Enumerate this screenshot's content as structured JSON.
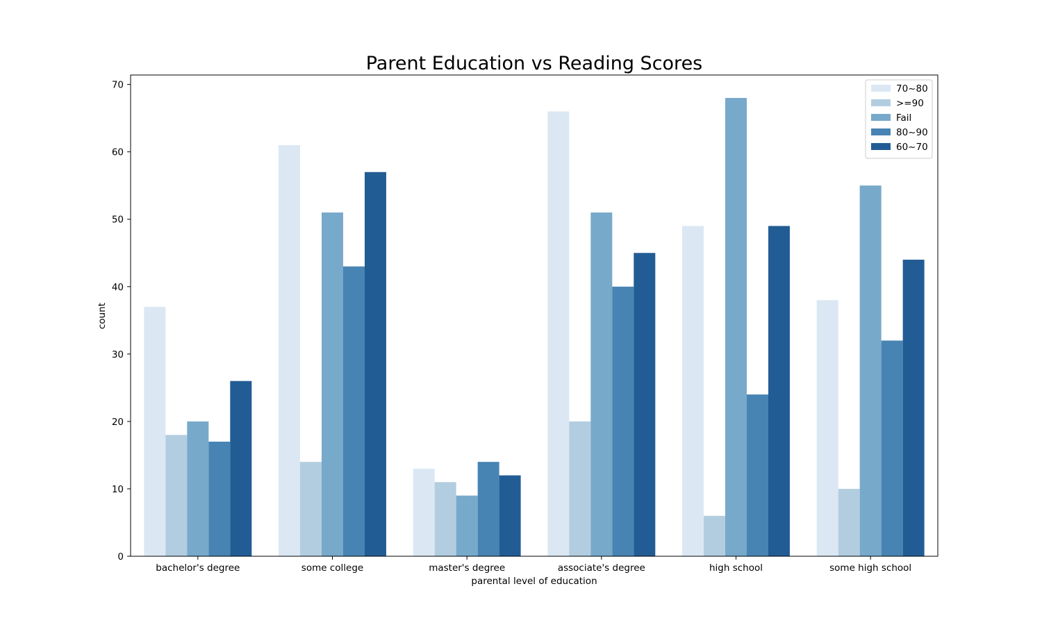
{
  "chart_data": {
    "type": "bar",
    "title": "Parent Education vs Reading Scores",
    "xlabel": "parental level of education",
    "ylabel": "count",
    "ylim": [
      0,
      71.4
    ],
    "yticks": [
      0,
      10,
      20,
      30,
      40,
      50,
      60,
      70
    ],
    "grid": false,
    "legend_position": "top-right",
    "categories": [
      "bachelor's degree",
      "some college",
      "master's degree",
      "associate's degree",
      "high school",
      "some high school"
    ],
    "series": [
      {
        "name": "70~80",
        "color": "#dbe8f4",
        "values": [
          37,
          61,
          13,
          66,
          49,
          38
        ]
      },
      {
        "name": ">=90",
        "color": "#b3cde0",
        "values": [
          18,
          14,
          11,
          20,
          6,
          10
        ]
      },
      {
        "name": "Fail",
        "color": "#77a9ca",
        "values": [
          20,
          51,
          9,
          51,
          68,
          55
        ]
      },
      {
        "name": "80~90",
        "color": "#4784b3",
        "values": [
          17,
          43,
          14,
          40,
          24,
          32
        ]
      },
      {
        "name": "60~70",
        "color": "#225c94",
        "values": [
          26,
          57,
          12,
          45,
          49,
          44
        ]
      }
    ]
  }
}
